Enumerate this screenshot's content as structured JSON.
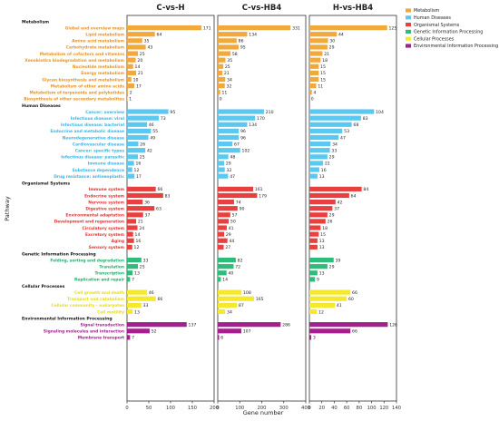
{
  "chart_data": {
    "type": "bar",
    "orientation": "horizontal",
    "xlabel": "Gene number",
    "ylabel": "Pathway",
    "panels": [
      {
        "title": "C-vs-H",
        "xlim": [
          0,
          200
        ],
        "ticks": [
          0,
          50,
          100,
          150,
          200
        ]
      },
      {
        "title": "C-vs-HB4",
        "xlim": [
          0,
          400
        ],
        "ticks": [
          0,
          100,
          200,
          300,
          400
        ]
      },
      {
        "title": "H-vs-HB4",
        "xlim": [
          0,
          140
        ],
        "ticks": [
          0,
          20,
          40,
          60,
          80,
          100,
          120,
          140
        ]
      }
    ],
    "legend": {
      "position": "top-right",
      "entries": [
        {
          "name": "Metabolism",
          "color": "#f2a93b"
        },
        {
          "name": "Human Diseases",
          "color": "#5bc8ef"
        },
        {
          "name": "Organismal Systems",
          "color": "#e8403f"
        },
        {
          "name": "Genetic Information Processing",
          "color": "#2dbc7a"
        },
        {
          "name": "Cellular Processes",
          "color": "#f4ea2b"
        },
        {
          "name": "Environmental Information Processing",
          "color": "#a3208f"
        }
      ]
    },
    "groups": [
      {
        "name": "Metabolism",
        "color": "#f2a93b",
        "label_color": "#e8931f",
        "items": [
          {
            "label": "Global and overview maps",
            "values": [
              171,
              331,
              125
            ]
          },
          {
            "label": "Lipid metabolism",
            "values": [
              64,
              134,
              44
            ]
          },
          {
            "label": "Amino acid metabolism",
            "values": [
              35,
              86,
              30
            ]
          },
          {
            "label": "Carbohydrate metabolism",
            "values": [
              43,
              95,
              29
            ]
          },
          {
            "label": "Metabolism of cofactors and vitamins",
            "values": [
              25,
              58,
              21
            ]
          },
          {
            "label": "Xenobiotics biodegradation and metabolism",
            "values": [
              20,
              35,
              18
            ]
          },
          {
            "label": "Nucleotide metabolism",
            "values": [
              14,
              25,
              15
            ]
          },
          {
            "label": "Energy metabolism",
            "values": [
              21,
              21,
              15
            ]
          },
          {
            "label": "Glycan biosynthesis and metabolism",
            "values": [
              10,
              34,
              15
            ]
          },
          {
            "label": "Metabolism of other amino acids",
            "values": [
              17,
              32,
              11
            ]
          },
          {
            "label": "Metabolism of terpenoids and polyketides",
            "values": [
              2,
              11,
              4
            ]
          },
          {
            "label": "Biosynthesis of other secondary metabolites",
            "values": [
              1,
              0,
              0
            ]
          }
        ]
      },
      {
        "name": "Human Diseases",
        "color": "#5bc8ef",
        "label_color": "#3ab4e6",
        "items": [
          {
            "label": "Cancer: overview",
            "values": [
              95,
              210,
              104
            ]
          },
          {
            "label": "Infectious disease: viral",
            "values": [
              73,
              170,
              83
            ]
          },
          {
            "label": "Infectious disease: bacterial",
            "values": [
              46,
              134,
              68
            ]
          },
          {
            "label": "Endocrine and metabolic disease",
            "values": [
              55,
              96,
              53
            ]
          },
          {
            "label": "Neurodegenerative disease",
            "values": [
              49,
              96,
              47
            ]
          },
          {
            "label": "Cardiovascular disease",
            "values": [
              26,
              67,
              34
            ]
          },
          {
            "label": "Cancer: specific types",
            "values": [
              42,
              102,
              33
            ]
          },
          {
            "label": "Infectious disease: parasitic",
            "values": [
              25,
              48,
              29
            ]
          },
          {
            "label": "Immune disease",
            "values": [
              16,
              29,
              22
            ]
          },
          {
            "label": "Substance dependence",
            "values": [
              12,
              32,
              16
            ]
          },
          {
            "label": "Drug resistance: antineoplastic",
            "values": [
              17,
              47,
              13
            ]
          }
        ]
      },
      {
        "name": "Organismal Systems",
        "color": "#e8403f",
        "label_color": "#e03535",
        "items": [
          {
            "label": "Immune system",
            "values": [
              66,
              161,
              84
            ]
          },
          {
            "label": "Endocrine system",
            "values": [
              83,
              179,
              64
            ]
          },
          {
            "label": "Nervous system",
            "values": [
              36,
              74,
              42
            ]
          },
          {
            "label": "Digestive system",
            "values": [
              63,
              90,
              37
            ]
          },
          {
            "label": "Environmental adaptation",
            "values": [
              37,
              57,
              29
            ]
          },
          {
            "label": "Development and regeneration",
            "values": [
              21,
              50,
              26
            ]
          },
          {
            "label": "Circulatory system",
            "values": [
              24,
              41,
              18
            ]
          },
          {
            "label": "Excretory system",
            "values": [
              14,
              29,
              15
            ]
          },
          {
            "label": "Aging",
            "values": [
              16,
              44,
              13
            ]
          },
          {
            "label": "Sensory system",
            "values": [
              12,
              27,
              13
            ]
          }
        ]
      },
      {
        "name": "Genetic Information Processing",
        "color": "#2dbc7a",
        "label_color": "#1fae6a",
        "items": [
          {
            "label": "Folding, sorting and degradation",
            "values": [
              33,
              82,
              39
            ]
          },
          {
            "label": "Translation",
            "values": [
              25,
              72,
              29
            ]
          },
          {
            "label": "Transcription",
            "values": [
              13,
              40,
              13
            ]
          },
          {
            "label": "Replication and repair",
            "values": [
              7,
              14,
              9
            ]
          }
        ]
      },
      {
        "name": "Cellular Processes",
        "color": "#f4ea2b",
        "label_color": "#e6dc1a",
        "items": [
          {
            "label": "Cell growth and death",
            "values": [
              46,
              108,
              66
            ]
          },
          {
            "label": "Transport and catabolism",
            "values": [
              66,
              165,
              60
            ]
          },
          {
            "label": "Cellular community - eukaryotes",
            "values": [
              33,
              87,
              41
            ]
          },
          {
            "label": "Cell motility",
            "values": [
              13,
              34,
              12
            ]
          }
        ]
      },
      {
        "name": "Environmental Information Processing",
        "color": "#a3208f",
        "label_color": "#a3208f",
        "items": [
          {
            "label": "Signal transduction",
            "values": [
              137,
              286,
              126
            ]
          },
          {
            "label": "Signaling molecules and interaction",
            "values": [
              52,
              107,
              66
            ]
          },
          {
            "label": "Membrane transport",
            "values": [
              7,
              6,
              3
            ]
          }
        ]
      }
    ]
  }
}
